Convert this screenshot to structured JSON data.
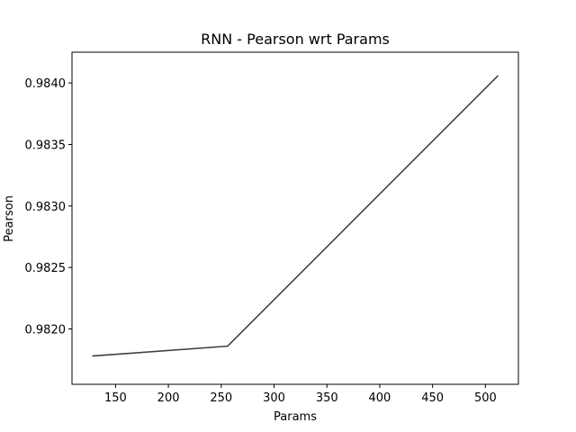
{
  "chart_data": {
    "type": "line",
    "title": "RNN - Pearson wrt Params",
    "xlabel": "Params",
    "ylabel": "Pearson",
    "xlim": [
      108.8,
      531.2
    ],
    "ylim": [
      0.98155,
      0.98425
    ],
    "xticks": [
      150,
      200,
      250,
      300,
      350,
      400,
      450,
      500
    ],
    "yticks": [
      0.982,
      0.9825,
      0.983,
      0.9835,
      0.984
    ],
    "ytick_labels": [
      "0.9820",
      "0.9825",
      "0.9830",
      "0.9835",
      "0.9840"
    ],
    "grid": false,
    "line_color": "#404040",
    "series": [
      {
        "x": [
          128,
          256,
          512
        ],
        "y": [
          0.98178,
          0.98186,
          0.98406
        ]
      }
    ]
  }
}
